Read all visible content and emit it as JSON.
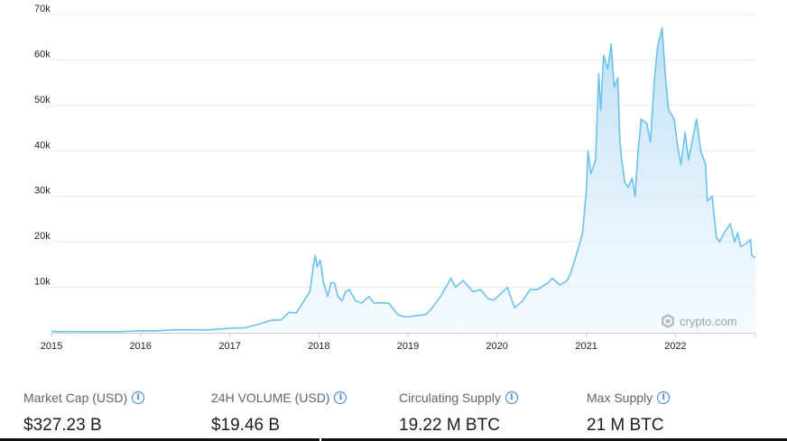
{
  "chart_data": {
    "type": "area",
    "title": "",
    "xlabel": "",
    "ylabel": "",
    "x_ticks": [
      "2015",
      "2016",
      "2017",
      "2018",
      "2019",
      "2020",
      "2021",
      "2022"
    ],
    "y_ticks": [
      "10k",
      "20k",
      "30k",
      "40k",
      "50k",
      "60k",
      "70k"
    ],
    "xlim": [
      "2015-01-01",
      "2022-11-25"
    ],
    "ylim": [
      0,
      70000
    ],
    "grid": true,
    "line_color": "#6cc1ee",
    "fill_color": "#d6ecfa",
    "series": [
      {
        "x": [
          "2015-01-01",
          "2015-01-15",
          "2015-02-01",
          "2015-03-01",
          "2015-04-01",
          "2015-06-01",
          "2015-08-01",
          "2015-10-01",
          "2015-11-15",
          "2016-01-01",
          "2016-03-01",
          "2016-06-01",
          "2016-07-01",
          "2016-10-01",
          "2017-01-01",
          "2017-03-01",
          "2017-05-01",
          "2017-06-15",
          "2017-08-01",
          "2017-09-01",
          "2017-10-01",
          "2017-11-01",
          "2017-11-25",
          "2017-12-10",
          "2017-12-17",
          "2017-12-25",
          "2018-01-06",
          "2018-01-20",
          "2018-02-06",
          "2018-02-20",
          "2018-03-05",
          "2018-03-20",
          "2018-04-06",
          "2018-04-20",
          "2018-05-06",
          "2018-06-01",
          "2018-06-25",
          "2018-07-25",
          "2018-08-15",
          "2018-09-15",
          "2018-10-15",
          "2018-11-20",
          "2018-12-15",
          "2019-01-15",
          "2019-02-15",
          "2019-03-15",
          "2019-04-03",
          "2019-05-15",
          "2019-06-26",
          "2019-07-15",
          "2019-08-15",
          "2019-09-25",
          "2019-10-26",
          "2019-11-25",
          "2019-12-18",
          "2020-01-15",
          "2020-02-13",
          "2020-03-13",
          "2020-04-15",
          "2020-05-15",
          "2020-06-15",
          "2020-07-28",
          "2020-08-15",
          "2020-09-15",
          "2020-10-15",
          "2020-10-28",
          "2020-11-15",
          "2020-12-01",
          "2020-12-17",
          "2021-01-02",
          "2021-01-08",
          "2021-01-20",
          "2021-02-08",
          "2021-02-21",
          "2021-03-01",
          "2021-03-13",
          "2021-03-30",
          "2021-04-13",
          "2021-04-25",
          "2021-05-10",
          "2021-05-19",
          "2021-05-26",
          "2021-06-08",
          "2021-06-22",
          "2021-07-08",
          "2021-07-20",
          "2021-08-01",
          "2021-08-14",
          "2021-09-06",
          "2021-09-21",
          "2021-10-06",
          "2021-10-20",
          "2021-11-08",
          "2021-11-20",
          "2021-12-04",
          "2021-12-27",
          "2022-01-10",
          "2022-01-24",
          "2022-02-10",
          "2022-02-24",
          "2022-03-29",
          "2022-04-15",
          "2022-05-05",
          "2022-05-12",
          "2022-06-01",
          "2022-06-18",
          "2022-07-01",
          "2022-07-20",
          "2022-08-14",
          "2022-09-01",
          "2022-09-13",
          "2022-09-25",
          "2022-10-15",
          "2022-11-05",
          "2022-11-10",
          "2022-11-25"
        ],
        "y": [
          320,
          270,
          230,
          260,
          250,
          240,
          230,
          240,
          340,
          430,
          415,
          670,
          650,
          640,
          1000,
          1100,
          1900,
          2700,
          2900,
          4500,
          4400,
          7000,
          9000,
          15000,
          17000,
          14500,
          16000,
          11000,
          8000,
          11000,
          11000,
          8000,
          7000,
          9000,
          9500,
          7000,
          6500,
          8000,
          6500,
          6600,
          6500,
          4000,
          3500,
          3600,
          3800,
          4000,
          5000,
          8000,
          12000,
          10000,
          11500,
          9000,
          9500,
          7500,
          7200,
          8500,
          10000,
          5500,
          7000,
          9500,
          9500,
          11000,
          12000,
          10500,
          11500,
          13000,
          16000,
          19000,
          22000,
          32000,
          40000,
          35000,
          38000,
          57000,
          49000,
          61000,
          58000,
          63500,
          54000,
          56000,
          42000,
          38000,
          33000,
          32000,
          34000,
          30000,
          40000,
          47000,
          46000,
          42000,
          55000,
          63000,
          67000,
          57000,
          49000,
          47000,
          41000,
          37000,
          44000,
          38000,
          47000,
          40000,
          37000,
          29000,
          30000,
          21000,
          20000,
          22000,
          24000,
          20000,
          22000,
          19000,
          19500,
          20500,
          17000,
          16500
        ]
      }
    ]
  },
  "watermark": {
    "text": "crypto.com",
    "icon": "crypto-com-logo-icon"
  },
  "stats": [
    {
      "label": "Market Cap (USD)",
      "value": "$327.23 B",
      "icon": "info-icon"
    },
    {
      "label": "24H VOLUME (USD)",
      "value": "$19.46 B",
      "icon": "info-icon"
    },
    {
      "label": "Circulating Supply",
      "value": "19.22 M BTC",
      "icon": "info-icon"
    },
    {
      "label": "Max Supply",
      "value": "21 M BTC",
      "icon": "info-icon"
    }
  ]
}
